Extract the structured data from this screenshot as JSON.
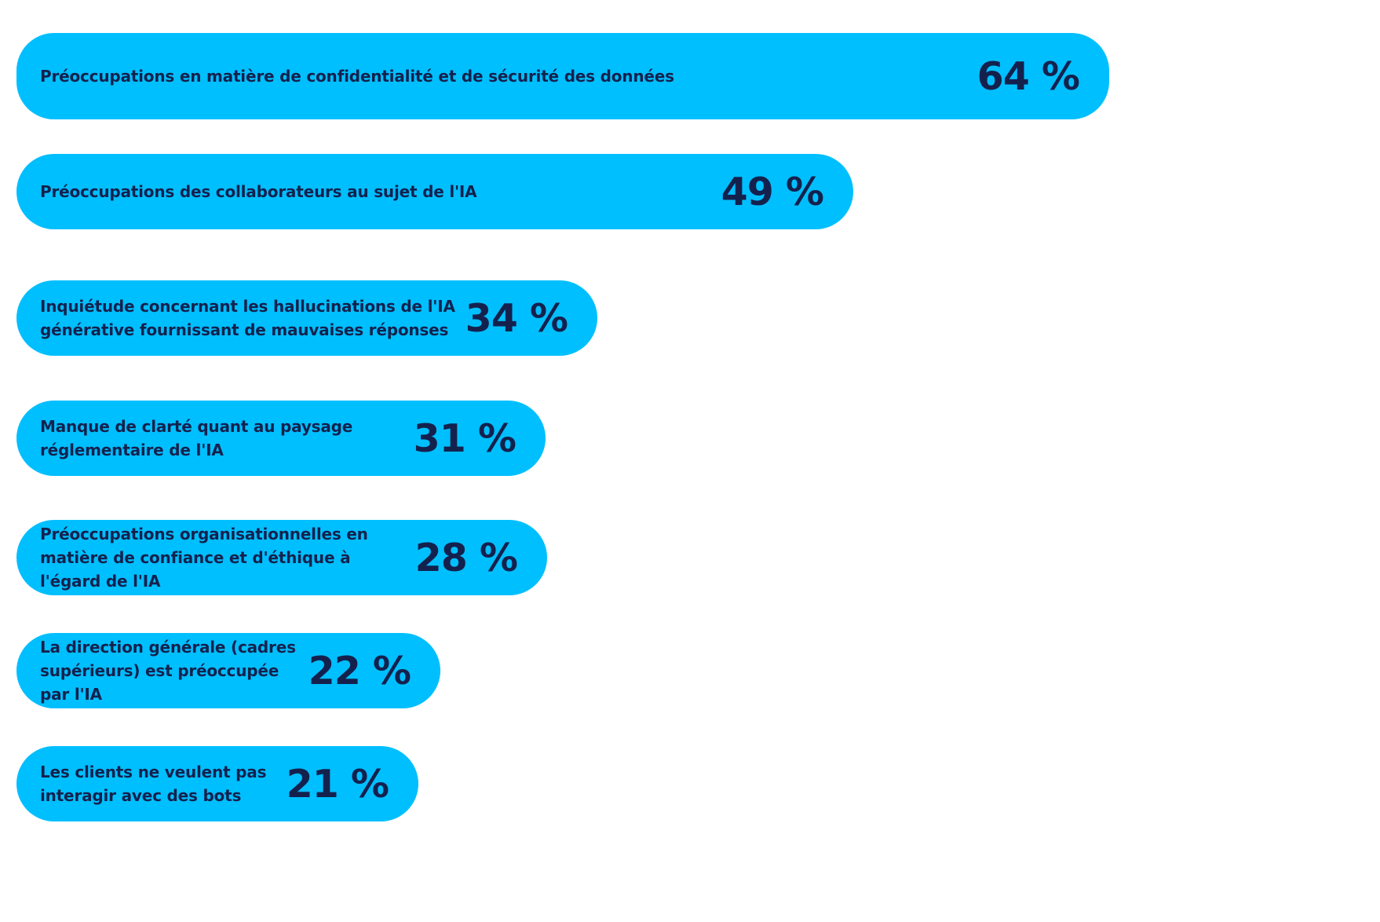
{
  "chart_data": {
    "type": "bar",
    "orientation": "horizontal",
    "unit": "%",
    "xlim": [
      0,
      64
    ],
    "grid": false,
    "colors": {
      "bar": "#00bfff",
      "text": "#14214d"
    },
    "bars": [
      {
        "label": "Préoccupations en matière de confidentialité et de sécurité des données",
        "value": 64,
        "display": "64 %"
      },
      {
        "label": "Préoccupations des collaborateurs au sujet de l'IA",
        "value": 49,
        "display": "49 %"
      },
      {
        "label": "Inquiétude concernant les hallucinations de l'IA générative fournissant de mauvaises réponses",
        "value": 34,
        "display": "34 %"
      },
      {
        "label": "Manque de clarté quant au paysage réglementaire de l'IA",
        "value": 31,
        "display": "31 %"
      },
      {
        "label": "Préoccupations organisationnelles en matière de confiance et d'éthique à l'égard de l'IA",
        "value": 28,
        "display": "28 %"
      },
      {
        "label": "La direction générale (cadres supérieurs) est préoccupée par l'IA",
        "value": 22,
        "display": "22 %"
      },
      {
        "label": "Les clients ne veulent pas interagir avec des bots",
        "value": 21,
        "display": "21 %"
      }
    ]
  }
}
